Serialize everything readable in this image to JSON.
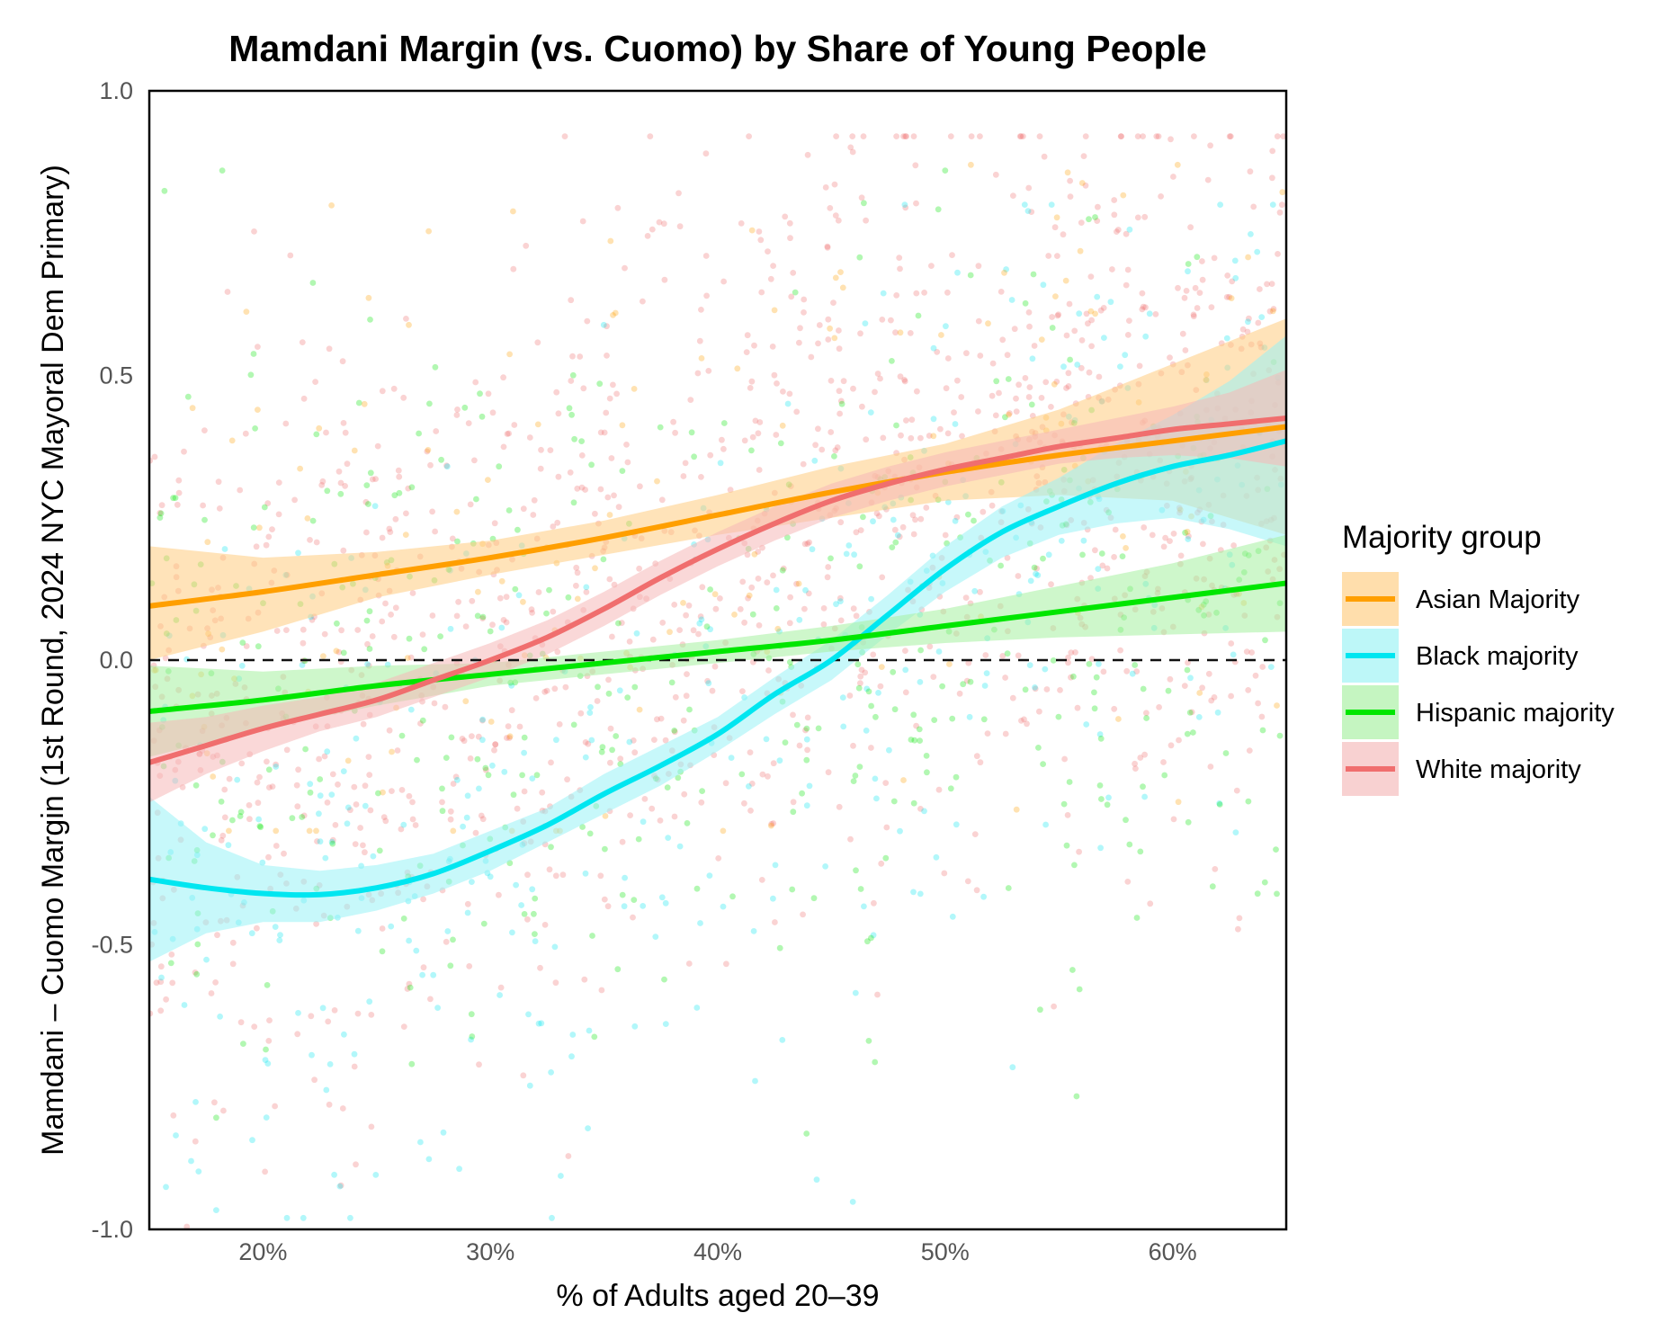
{
  "chart_data": {
    "type": "scatter",
    "title": "Mamdani Margin (vs. Cuomo) by Share of Young People",
    "xlabel": "% of Adults aged 20–39",
    "ylabel": "Mamdani – Cuomo Margin (1st Round, 2024 NYC Mayoral Dem Primary)",
    "xlim": [
      0.15,
      0.65
    ],
    "ylim": [
      -1.0,
      1.0
    ],
    "x_ticks": [
      0.2,
      0.3,
      0.4,
      0.5,
      0.6
    ],
    "x_tick_labels": [
      "20%",
      "30%",
      "40%",
      "50%",
      "60%"
    ],
    "y_ticks": [
      1.0,
      0.5,
      0.0,
      -0.5,
      -1.0
    ],
    "y_tick_labels": [
      "1.0",
      "0.5",
      "0.0",
      "-0.5",
      "-1.0"
    ],
    "reference_line": {
      "y": 0.0,
      "style": "dashed"
    },
    "grid": false,
    "legend": {
      "title": "Majority group",
      "placement": "right",
      "entries": [
        "Asian Majority",
        "Black majority",
        "Hispanic majority",
        "White majority"
      ]
    },
    "series": [
      {
        "name": "Asian Majority",
        "color": "#ff9f00",
        "fill": "#ffcc80",
        "trend": [
          [
            0.15,
            0.095
          ],
          [
            0.2,
            0.12
          ],
          [
            0.25,
            0.15
          ],
          [
            0.3,
            0.18
          ],
          [
            0.35,
            0.215
          ],
          [
            0.4,
            0.255
          ],
          [
            0.45,
            0.295
          ],
          [
            0.5,
            0.33
          ],
          [
            0.55,
            0.36
          ],
          [
            0.6,
            0.385
          ],
          [
            0.65,
            0.41
          ]
        ],
        "band_lower": [
          0.0,
          0.05,
          0.11,
          0.15,
          0.185,
          0.22,
          0.25,
          0.28,
          0.29,
          0.28,
          0.22
        ],
        "band_upper": [
          0.2,
          0.18,
          0.19,
          0.21,
          0.245,
          0.29,
          0.34,
          0.38,
          0.44,
          0.52,
          0.6
        ]
      },
      {
        "name": "Black majority",
        "color": "#00e6f0",
        "fill": "#99f3f5",
        "trend": [
          [
            0.15,
            -0.385
          ],
          [
            0.175,
            -0.4
          ],
          [
            0.2,
            -0.41
          ],
          [
            0.225,
            -0.412
          ],
          [
            0.25,
            -0.4
          ],
          [
            0.275,
            -0.375
          ],
          [
            0.3,
            -0.335
          ],
          [
            0.325,
            -0.29
          ],
          [
            0.35,
            -0.235
          ],
          [
            0.375,
            -0.185
          ],
          [
            0.4,
            -0.13
          ],
          [
            0.425,
            -0.06
          ],
          [
            0.45,
            0.0
          ],
          [
            0.475,
            0.08
          ],
          [
            0.5,
            0.16
          ],
          [
            0.525,
            0.225
          ],
          [
            0.55,
            0.27
          ],
          [
            0.575,
            0.31
          ],
          [
            0.6,
            0.34
          ],
          [
            0.625,
            0.36
          ],
          [
            0.65,
            0.385
          ]
        ],
        "band_lower": [
          -0.53,
          -0.48,
          -0.46,
          -0.46,
          -0.44,
          -0.41,
          -0.37,
          -0.32,
          -0.27,
          -0.22,
          -0.16,
          -0.095,
          -0.035,
          0.045,
          0.12,
          0.18,
          0.22,
          0.24,
          0.25,
          0.23,
          0.2
        ],
        "band_upper": [
          -0.24,
          -0.32,
          -0.36,
          -0.37,
          -0.36,
          -0.34,
          -0.3,
          -0.26,
          -0.2,
          -0.15,
          -0.1,
          -0.03,
          0.035,
          0.115,
          0.2,
          0.27,
          0.32,
          0.38,
          0.43,
          0.49,
          0.57
        ]
      },
      {
        "name": "Hispanic majority",
        "color": "#00e600",
        "fill": "#a6f0a0",
        "trend": [
          [
            0.15,
            -0.09
          ],
          [
            0.2,
            -0.07
          ],
          [
            0.25,
            -0.045
          ],
          [
            0.3,
            -0.025
          ],
          [
            0.35,
            -0.005
          ],
          [
            0.4,
            0.015
          ],
          [
            0.45,
            0.035
          ],
          [
            0.5,
            0.06
          ],
          [
            0.55,
            0.085
          ],
          [
            0.6,
            0.11
          ],
          [
            0.65,
            0.135
          ]
        ],
        "band_lower": [
          -0.17,
          -0.12,
          -0.08,
          -0.045,
          -0.025,
          -0.005,
          0.015,
          0.03,
          0.04,
          0.045,
          0.05
        ],
        "band_upper": [
          -0.01,
          -0.02,
          -0.01,
          -0.005,
          0.015,
          0.035,
          0.06,
          0.09,
          0.13,
          0.17,
          0.22
        ]
      },
      {
        "name": "White majority",
        "color": "#f06e6e",
        "fill": "#f5b8b8",
        "trend": [
          [
            0.15,
            -0.18
          ],
          [
            0.175,
            -0.15
          ],
          [
            0.2,
            -0.12
          ],
          [
            0.225,
            -0.095
          ],
          [
            0.25,
            -0.07
          ],
          [
            0.275,
            -0.035
          ],
          [
            0.3,
            0.0
          ],
          [
            0.325,
            0.04
          ],
          [
            0.35,
            0.09
          ],
          [
            0.375,
            0.145
          ],
          [
            0.4,
            0.195
          ],
          [
            0.425,
            0.24
          ],
          [
            0.45,
            0.28
          ],
          [
            0.475,
            0.31
          ],
          [
            0.5,
            0.335
          ],
          [
            0.525,
            0.355
          ],
          [
            0.55,
            0.375
          ],
          [
            0.575,
            0.39
          ],
          [
            0.6,
            0.405
          ],
          [
            0.625,
            0.415
          ],
          [
            0.65,
            0.425
          ]
        ],
        "band_lower": [
          -0.25,
          -0.2,
          -0.16,
          -0.125,
          -0.1,
          -0.065,
          -0.03,
          0.01,
          0.06,
          0.115,
          0.165,
          0.21,
          0.25,
          0.28,
          0.305,
          0.325,
          0.345,
          0.355,
          0.36,
          0.355,
          0.34
        ],
        "band_upper": [
          -0.11,
          -0.1,
          -0.08,
          -0.065,
          -0.04,
          -0.005,
          0.03,
          0.07,
          0.12,
          0.175,
          0.225,
          0.27,
          0.31,
          0.34,
          0.365,
          0.385,
          0.405,
          0.425,
          0.445,
          0.47,
          0.51
        ]
      }
    ],
    "scatter_points": [
      {
        "group": "White majority",
        "count": 1300,
        "x_range": [
          0.15,
          0.65
        ],
        "y_range": [
          -1.0,
          0.92
        ]
      },
      {
        "group": "Black majority",
        "count": 380,
        "x_range": [
          0.15,
          0.65
        ],
        "y_range": [
          -0.98,
          0.8
        ]
      },
      {
        "group": "Hispanic majority",
        "count": 420,
        "x_range": [
          0.15,
          0.65
        ],
        "y_range": [
          -0.95,
          0.86
        ]
      },
      {
        "group": "Asian Majority",
        "count": 160,
        "x_range": [
          0.15,
          0.65
        ],
        "y_range": [
          -0.3,
          0.87
        ]
      }
    ]
  }
}
